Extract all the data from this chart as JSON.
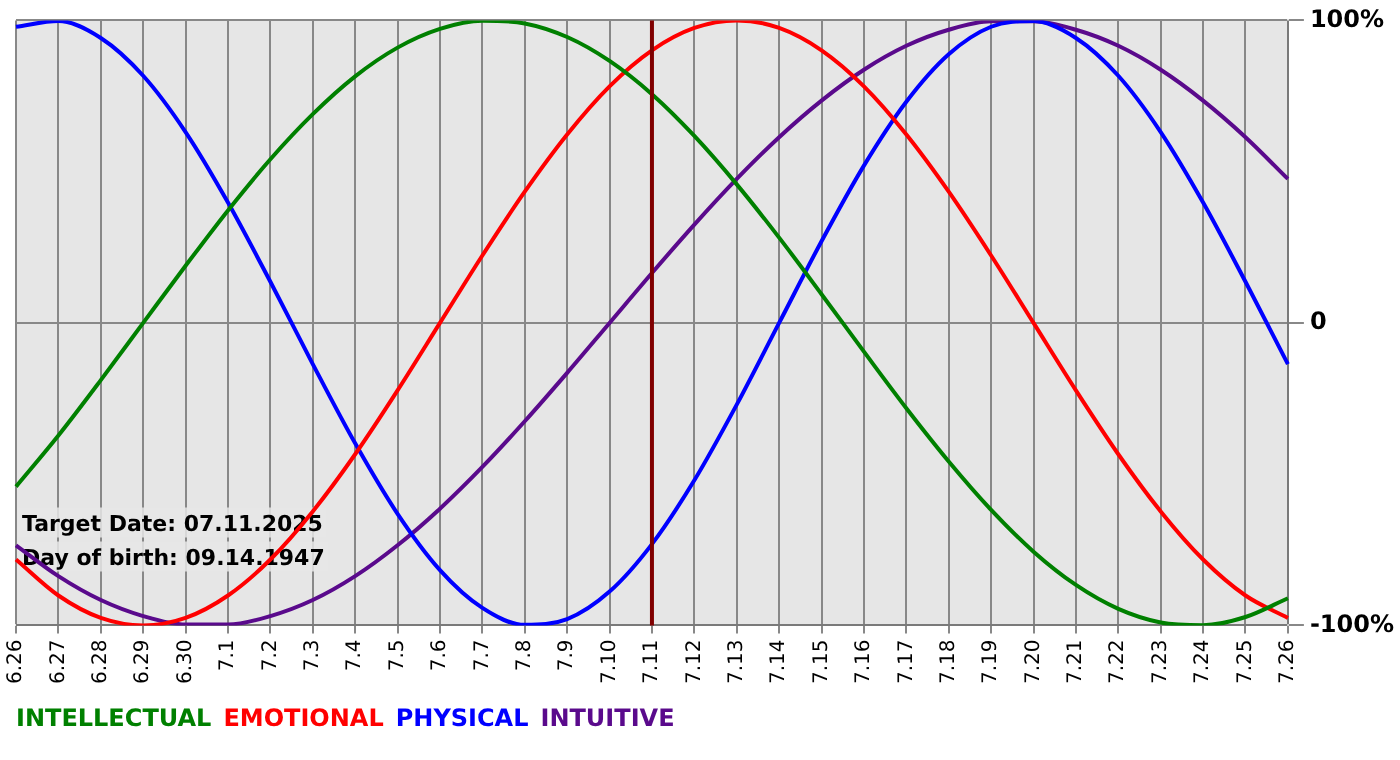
{
  "chart_data": {
    "type": "line",
    "categories": [
      "6.26",
      "6.27",
      "6.28",
      "6.29",
      "6.30",
      "7.1",
      "7.2",
      "7.3",
      "7.4",
      "7.5",
      "7.6",
      "7.7",
      "7.8",
      "7.9",
      "7.10",
      "7.11",
      "7.12",
      "7.13",
      "7.14",
      "7.15",
      "7.16",
      "7.17",
      "7.18",
      "7.19",
      "7.20",
      "7.21",
      "7.22",
      "7.23",
      "7.24",
      "7.25",
      "7.26"
    ],
    "series": [
      {
        "name": "INTELLECTUAL",
        "color": "#008000",
        "values": [
          -54.1,
          -37.2,
          -18.9,
          0,
          18.9,
          37.2,
          54.1,
          69.0,
          81.5,
          91.0,
          97.2,
          99.9,
          99.0,
          94.5,
          86.6,
          75.6,
          61.8,
          45.8,
          28.2,
          9.5,
          -9.5,
          -28.2,
          -45.8,
          -61.8,
          -75.6,
          -86.6,
          -94.5,
          -99.0,
          -99.9,
          -97.2,
          -91.0
        ]
      },
      {
        "name": "EMOTIONAL",
        "color": "#ff0000",
        "values": [
          -78.2,
          -90.1,
          -97.5,
          -100,
          -97.5,
          -90.1,
          -78.2,
          -62.3,
          -43.4,
          -22.3,
          0,
          22.3,
          43.4,
          62.3,
          78.2,
          90.1,
          97.5,
          100,
          97.5,
          90.1,
          78.2,
          62.3,
          43.4,
          22.3,
          0,
          -22.3,
          -43.4,
          -62.3,
          -78.2,
          -90.1,
          -97.5
        ]
      },
      {
        "name": "PHYSICAL",
        "color": "#0000ff",
        "values": [
          97.9,
          99.8,
          94.2,
          81.7,
          63.1,
          39.8,
          13.6,
          -13.6,
          -39.8,
          -63.1,
          -81.7,
          -94.2,
          -99.8,
          -97.9,
          -88.8,
          -73.1,
          -52.0,
          -27.0,
          0,
          27.0,
          52.0,
          73.1,
          88.8,
          97.9,
          99.8,
          94.2,
          81.7,
          63.1,
          39.8,
          13.6,
          -13.6
        ]
      },
      {
        "name": "INTUITIVE",
        "color": "#5a0a8c",
        "values": [
          -73.5,
          -83.7,
          -91.6,
          -96.9,
          -99.7,
          -99.7,
          -96.9,
          -91.6,
          -83.7,
          -73.5,
          -61.4,
          -47.6,
          -32.5,
          -16.5,
          0,
          16.5,
          32.5,
          47.6,
          61.4,
          73.5,
          83.7,
          91.6,
          96.9,
          99.7,
          99.7,
          96.9,
          91.6,
          83.7,
          73.5,
          61.4,
          47.6
        ]
      }
    ],
    "ylim": [
      -100,
      100
    ],
    "yticks": [
      {
        "value": -100,
        "label": "-100%"
      },
      0,
      {
        "value": 100,
        "label": "100%"
      }
    ],
    "grid": true,
    "legend": "bottom left",
    "marker": "none",
    "line_style": "solid",
    "ref_lines": [
      {
        "axis": "x",
        "value": "7.11",
        "color": "#800000"
      }
    ],
    "annotations": [
      "Target Date: 07.11.2025",
      "Day of birth: 09.14.1947"
    ]
  }
}
